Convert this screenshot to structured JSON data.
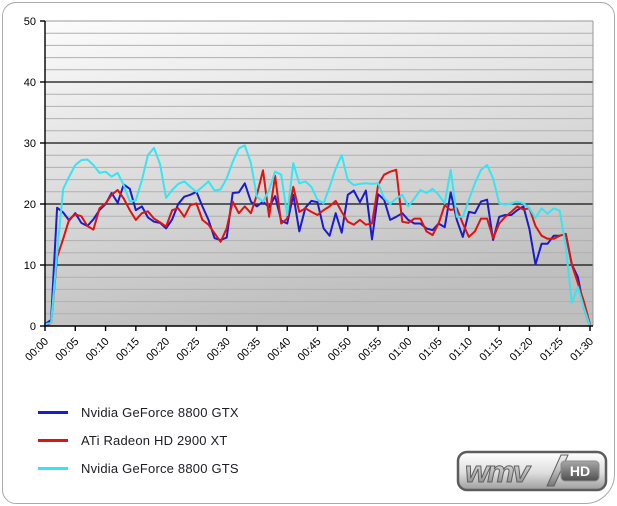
{
  "page": {
    "background": "#ffffff",
    "border_color": "#a9a9a9"
  },
  "chart_data": {
    "type": "line",
    "title": "",
    "xlabel": "",
    "ylabel": "",
    "x_unit": "seconds",
    "x_step_seconds": 1,
    "ylim": [
      0,
      50
    ],
    "y_major_step": 10,
    "y_minor_step": 2,
    "grid": "horizontal-only",
    "legend_position": "bottom-left",
    "x_tick_labels": [
      "00:00",
      "00:05",
      "00:10",
      "00:15",
      "00:20",
      "00:25",
      "00:30",
      "00:35",
      "00:40",
      "00:45",
      "00:50",
      "00:55",
      "01:00",
      "01:05",
      "01:10",
      "01:15",
      "01:20",
      "01:25",
      "01:30"
    ],
    "y_tick_labels": [
      "0",
      "10",
      "20",
      "30",
      "40",
      "50"
    ],
    "series": [
      {
        "name": "Nvidia GeForce 8800 GTX",
        "color": "#1b1bd0",
        "values": [
          0.3,
          1,
          19.4,
          18.6,
          17.3,
          18.5,
          16.9,
          16.4,
          17.5,
          19,
          20,
          21.8,
          20.2,
          23.2,
          22.5,
          19,
          19.6,
          17.8,
          17.1,
          16.9,
          16,
          17.5,
          20,
          21.2,
          21.5,
          22,
          19.6,
          17.4,
          14.4,
          14.1,
          14.5,
          21.8,
          21.9,
          23.4,
          20.4,
          19.6,
          20.4,
          19.5,
          21.3,
          17.3,
          16.8,
          21.5,
          15.5,
          19.4,
          20.5,
          20.3,
          16,
          14.8,
          18.5,
          15.3,
          21.5,
          22.2,
          20.3,
          22.2,
          14.2,
          21.6,
          20.7,
          17.4,
          17.9,
          18.5,
          17.4,
          16.8,
          16.8,
          16,
          15.7,
          16.8,
          16.2,
          21.9,
          17.4,
          14.6,
          18.7,
          18.5,
          20.4,
          20.7,
          14.1,
          17.9,
          18.2,
          18.2,
          19,
          19.6,
          15.9,
          10.1,
          13.5,
          13.5,
          14.8,
          14.8,
          15.1,
          10.1,
          8,
          3,
          0
        ]
      },
      {
        "name": "ATi Radeon HD 2900 XT",
        "color": "#de1312",
        "values": [
          0,
          0.5,
          11.3,
          14.3,
          17.5,
          18.3,
          18,
          16.4,
          15.8,
          19.3,
          20.1,
          21.5,
          22.3,
          20.9,
          19,
          17.4,
          18.5,
          18.8,
          17.6,
          17,
          16.3,
          19,
          19.3,
          17.9,
          19.8,
          20.1,
          17.4,
          16.6,
          15.2,
          13.8,
          16,
          20.4,
          18.5,
          19.6,
          18.5,
          21.5,
          25.5,
          17.9,
          24.6,
          16.8,
          17.6,
          22.8,
          18.7,
          19.3,
          18.7,
          18.2,
          19,
          19.6,
          20.5,
          18.7,
          17.1,
          16.6,
          17.4,
          16.6,
          16.8,
          23.1,
          24.8,
          25.3,
          25.6,
          17.1,
          16.9,
          17.6,
          17.6,
          15.5,
          14.9,
          16.8,
          19.8,
          19,
          19.3,
          16.8,
          14.6,
          15.5,
          17.6,
          17.6,
          14.4,
          16.8,
          17.9,
          18.7,
          19.6,
          19.1,
          19.3,
          16.4,
          14.8,
          14.3,
          14.3,
          14.8,
          15.1,
          10.1,
          7,
          4,
          0.3
        ]
      },
      {
        "name": "Nvidia GeForce 8800 GTS",
        "color": "#35e5f2",
        "values": [
          0.3,
          0.5,
          12,
          22.5,
          24.5,
          26.4,
          27.2,
          27.3,
          26.4,
          25.1,
          25.3,
          24.5,
          25.1,
          23.1,
          20.4,
          20.6,
          23.9,
          28,
          29.2,
          26.5,
          21,
          22.3,
          23.3,
          23.7,
          22.8,
          22,
          22.8,
          23.7,
          22.2,
          22.4,
          24.2,
          26.9,
          29.1,
          29.6,
          26.7,
          21.2,
          20.4,
          22.3,
          25.3,
          24.8,
          18.2,
          26.7,
          23.4,
          23.7,
          22.8,
          20.7,
          20.1,
          22.8,
          25.8,
          28,
          23.9,
          23.1,
          23.3,
          23.4,
          23.3,
          23.4,
          21,
          20,
          20.9,
          21.5,
          19.6,
          20.9,
          22.3,
          21.8,
          22.5,
          21.5,
          20.1,
          25.6,
          17.9,
          17.9,
          20.7,
          23.4,
          25.6,
          26.4,
          24.2,
          20.1,
          19.9,
          20.1,
          20.4,
          20.1,
          19.3,
          17.7,
          19.3,
          18.4,
          19.3,
          18.9,
          13,
          3.8,
          6.4,
          3,
          0
        ]
      }
    ],
    "plot_style": {
      "bg_gradient_top": "#fcfcfc",
      "bg_gradient_bottom": "#bfbfbf",
      "major_grid_color": "#111111",
      "minor_grid_color": "#b0b0b0",
      "frame_color": "#999999",
      "axis_color": "#000000",
      "tick_label_color": "#000000"
    }
  },
  "legend": {
    "items": [
      {
        "label": "Nvidia GeForce 8800 GTX",
        "color": "#1b1bd0"
      },
      {
        "label": "ATi Radeon HD 2900 XT",
        "color": "#de1312"
      },
      {
        "label": "Nvidia GeForce 8800 GTS",
        "color": "#35e5f2"
      }
    ]
  },
  "logo": {
    "text": "wmv",
    "badge": "HD"
  }
}
